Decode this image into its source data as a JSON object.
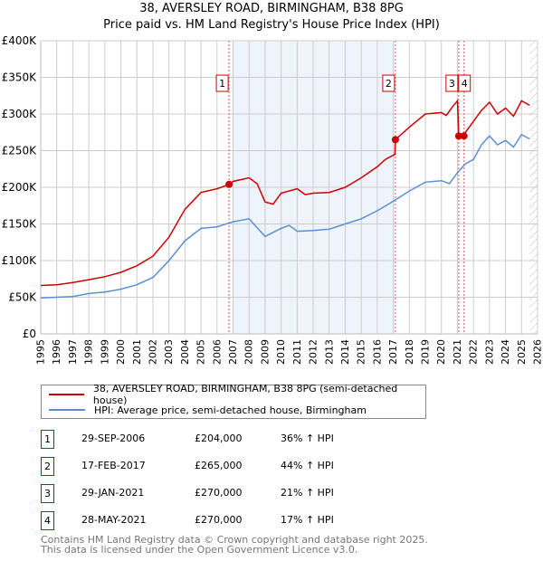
{
  "chart_data": {
    "type": "line",
    "title": "38, AVERSLEY ROAD, BIRMINGHAM, B38 8PG",
    "subtitle": "Price paid vs. HM Land Registry's House Price Index (HPI)",
    "xlim": [
      1995,
      2026
    ],
    "ylim": [
      0,
      400000
    ],
    "x_ticks": [
      "1995",
      "1996",
      "1997",
      "1998",
      "1999",
      "2000",
      "2001",
      "2002",
      "2003",
      "2004",
      "2005",
      "2006",
      "2007",
      "2008",
      "2009",
      "2010",
      "2011",
      "2012",
      "2013",
      "2014",
      "2015",
      "2016",
      "2017",
      "2018",
      "2019",
      "2020",
      "2021",
      "2022",
      "2023",
      "2024",
      "2025",
      "2026"
    ],
    "y_ticks": [
      {
        "v": 0,
        "label": "£0"
      },
      {
        "v": 50000,
        "label": "£50K"
      },
      {
        "v": 100000,
        "label": "£100K"
      },
      {
        "v": 150000,
        "label": "£150K"
      },
      {
        "v": 200000,
        "label": "£200K"
      },
      {
        "v": 250000,
        "label": "£250K"
      },
      {
        "v": 300000,
        "label": "£300K"
      },
      {
        "v": 350000,
        "label": "£350K"
      },
      {
        "v": 400000,
        "label": "£400K"
      }
    ],
    "grid": true,
    "shaded_range": [
      2007.0,
      2017.1
    ],
    "hatched_from": 2025.5,
    "series": [
      {
        "name": "38, AVERSLEY ROAD, BIRMINGHAM, B38 8PG (semi-detached house)",
        "color": "#cc0000",
        "x": [
          1995,
          1996,
          1997,
          1998,
          1999,
          2000,
          2001,
          2002,
          2003,
          2004,
          2005,
          2006,
          2006.75,
          2007,
          2008,
          2008.5,
          2009,
          2009.5,
          2010,
          2011,
          2011.5,
          2012,
          2013,
          2014,
          2015,
          2016,
          2016.5,
          2017.1,
          2017.13,
          2018,
          2019,
          2020,
          2020.3,
          2020.7,
          2021.0,
          2021.08,
          2021.4,
          2021.5,
          2022,
          2022.5,
          2023,
          2023.5,
          2024,
          2024.5,
          2025,
          2025.5
        ],
        "y": [
          66000,
          67000,
          70000,
          74000,
          78000,
          84000,
          93000,
          106000,
          132000,
          170000,
          193000,
          198000,
          204000,
          208000,
          213000,
          205000,
          180000,
          177000,
          192000,
          198000,
          190000,
          192000,
          193000,
          200000,
          213000,
          228000,
          238000,
          245000,
          265000,
          282000,
          300000,
          302000,
          298000,
          310000,
          318000,
          270000,
          270000,
          275000,
          290000,
          305000,
          316000,
          300000,
          308000,
          297000,
          318000,
          312000
        ]
      },
      {
        "name": "HPI: Average price, semi-detached house, Birmingham",
        "color": "#5b8fd4",
        "x": [
          1995,
          1996,
          1997,
          1998,
          1999,
          2000,
          2001,
          2002,
          2003,
          2004,
          2005,
          2006,
          2007,
          2008,
          2009,
          2010,
          2010.5,
          2011,
          2012,
          2013,
          2014,
          2015,
          2016,
          2017,
          2018,
          2019,
          2020,
          2020.5,
          2021,
          2021.5,
          2022,
          2022.5,
          2023,
          2023.5,
          2024,
          2024.5,
          2025,
          2025.5
        ],
        "y": [
          49000,
          50000,
          51000,
          55000,
          57000,
          61000,
          67000,
          77000,
          100000,
          127000,
          144000,
          146000,
          153000,
          157000,
          133000,
          144000,
          148000,
          140000,
          141000,
          143000,
          150000,
          157000,
          168000,
          181000,
          195000,
          207000,
          209000,
          205000,
          220000,
          232000,
          238000,
          258000,
          270000,
          258000,
          264000,
          255000,
          272000,
          266000
        ]
      }
    ],
    "sales": [
      {
        "n": "1",
        "x": 2006.75,
        "y": 204000
      },
      {
        "n": "2",
        "x": 2017.13,
        "y": 265000
      },
      {
        "n": "3",
        "x": 2021.08,
        "y": 270000
      },
      {
        "n": "4",
        "x": 2021.41,
        "y": 270000
      }
    ]
  },
  "legend": {
    "property": "38, AVERSLEY ROAD, BIRMINGHAM, B38 8PG (semi-detached house)",
    "hpi": "HPI: Average price, semi-detached house, Birmingham"
  },
  "transactions": [
    {
      "n": "1",
      "date": "29-SEP-2006",
      "price": "£204,000",
      "hpi": "36% ↑ HPI"
    },
    {
      "n": "2",
      "date": "17-FEB-2017",
      "price": "£265,000",
      "hpi": "44% ↑ HPI"
    },
    {
      "n": "3",
      "date": "29-JAN-2021",
      "price": "£270,000",
      "hpi": "21% ↑ HPI"
    },
    {
      "n": "4",
      "date": "28-MAY-2021",
      "price": "£270,000",
      "hpi": "17% ↑ HPI"
    }
  ],
  "footer": {
    "line1": "Contains HM Land Registry data © Crown copyright and database right 2025.",
    "line2": "This data is licensed under the Open Government Licence v3.0."
  }
}
